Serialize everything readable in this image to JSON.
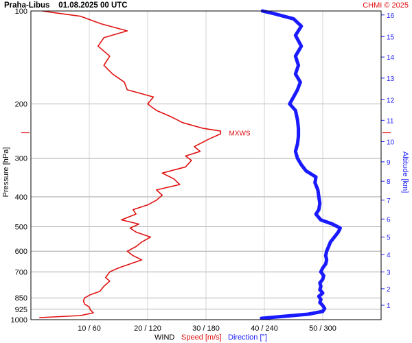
{
  "chart_data": {
    "type": "line",
    "title": "Praha-Libus    01.08.2025 00 UTC",
    "credit": "CHMI © 2025",
    "ylabel": "Pressure [hPa]",
    "y2label": "Altitude [km]",
    "xlabel_parts": {
      "wind": "WIND",
      "speed": "Speed [m/s]",
      "direction": "Direction [°]"
    },
    "y_scale": "log",
    "ylim": [
      1000,
      100
    ],
    "xlim_speed_ms": [
      0,
      60
    ],
    "xlim_direction_deg": [
      0,
      360
    ],
    "x_ticks": [
      {
        "speed": 10,
        "dir": 60,
        "label": "10 / 60"
      },
      {
        "speed": 20,
        "dir": 120,
        "label": "20 / 120"
      },
      {
        "speed": 30,
        "dir": 180,
        "label": "30 / 180"
      },
      {
        "speed": 40,
        "dir": 240,
        "label": "40 / 240"
      },
      {
        "speed": 50,
        "dir": 300,
        "label": "50 / 300"
      }
    ],
    "pressure_ticks": [
      {
        "p": 100,
        "label": "100"
      },
      {
        "p": 200,
        "label": "200"
      },
      {
        "p": 300,
        "label": "300"
      },
      {
        "p": 400,
        "label": "400"
      },
      {
        "p": 500,
        "label": "500"
      },
      {
        "p": 600,
        "label": "600"
      },
      {
        "p": 700,
        "label": "700"
      },
      {
        "p": 850,
        "label": "850"
      },
      {
        "p": 925,
        "label": "925"
      },
      {
        "p": 1000,
        "label": "1000"
      }
    ],
    "altitude_ticks": [
      {
        "km": 1,
        "p": 898,
        "label": "1"
      },
      {
        "km": 2,
        "p": 794,
        "label": "2"
      },
      {
        "km": 3,
        "p": 700,
        "label": "3"
      },
      {
        "km": 4,
        "p": 615,
        "label": "4"
      },
      {
        "km": 5,
        "p": 540,
        "label": "5"
      },
      {
        "km": 6,
        "p": 472,
        "label": "6"
      },
      {
        "km": 7,
        "p": 410,
        "label": "7"
      },
      {
        "km": 8,
        "p": 356,
        "label": "8"
      },
      {
        "km": 9,
        "p": 308,
        "label": "9"
      },
      {
        "km": 10,
        "p": 265,
        "label": "10"
      },
      {
        "km": 11,
        "p": 226,
        "label": "11"
      },
      {
        "km": 12,
        "p": 194,
        "label": "12"
      },
      {
        "km": 13,
        "p": 165,
        "label": "13"
      },
      {
        "km": 14,
        "p": 141,
        "label": "14"
      },
      {
        "km": 15,
        "p": 121,
        "label": "15"
      },
      {
        "km": 16,
        "p": 103,
        "label": "16"
      }
    ],
    "maxwind": {
      "label": "MXWS",
      "p": 248,
      "speed": 33
    },
    "series": [
      {
        "name": "Speed [m/s]",
        "color": "#e01010",
        "points": [
          [
            985,
            1.5
          ],
          [
            970,
            8.5
          ],
          [
            950,
            10.7
          ],
          [
            930,
            10.2
          ],
          [
            910,
            10.0
          ],
          [
            890,
            9.2
          ],
          [
            870,
            9.0
          ],
          [
            850,
            9.2
          ],
          [
            830,
            10.2
          ],
          [
            810,
            11.8
          ],
          [
            780,
            12.5
          ],
          [
            750,
            13.5
          ],
          [
            730,
            12.8
          ],
          [
            700,
            13.5
          ],
          [
            680,
            15.0
          ],
          [
            660,
            17.0
          ],
          [
            640,
            19.0
          ],
          [
            620,
            17.5
          ],
          [
            600,
            16.5
          ],
          [
            580,
            18.0
          ],
          [
            560,
            19.0
          ],
          [
            540,
            20.5
          ],
          [
            520,
            18.0
          ],
          [
            505,
            17.0
          ],
          [
            490,
            18.5
          ],
          [
            475,
            15.5
          ],
          [
            455,
            18.0
          ],
          [
            440,
            17.5
          ],
          [
            425,
            20.0
          ],
          [
            410,
            21.5
          ],
          [
            395,
            22.5
          ],
          [
            380,
            21.5
          ],
          [
            365,
            25.5
          ],
          [
            350,
            24.5
          ],
          [
            335,
            22.5
          ],
          [
            320,
            26.5
          ],
          [
            305,
            27.5
          ],
          [
            295,
            26.5
          ],
          [
            285,
            29.0
          ],
          [
            275,
            28.0
          ],
          [
            260,
            30.5
          ],
          [
            250,
            32.5
          ],
          [
            245,
            32.5
          ],
          [
            240,
            29.5
          ],
          [
            230,
            26.0
          ],
          [
            220,
            24.0
          ],
          [
            210,
            21.5
          ],
          [
            200,
            20.0
          ],
          [
            190,
            21.0
          ],
          [
            180,
            16.5
          ],
          [
            170,
            16.0
          ],
          [
            160,
            14.0
          ],
          [
            150,
            12.5
          ],
          [
            140,
            13.5
          ],
          [
            130,
            11.5
          ],
          [
            122,
            12.5
          ],
          [
            116,
            16.5
          ],
          [
            110,
            12.0
          ],
          [
            104,
            8.5
          ],
          [
            101,
            3.5
          ],
          [
            100,
            2.0
          ]
        ]
      },
      {
        "name": "Direction [°]",
        "color": "#1a1aff",
        "points": [
          [
            990,
            237
          ],
          [
            975,
            260
          ],
          [
            960,
            285
          ],
          [
            940,
            300
          ],
          [
            920,
            302
          ],
          [
            900,
            300
          ],
          [
            880,
            297
          ],
          [
            860,
            298
          ],
          [
            840,
            296
          ],
          [
            820,
            300
          ],
          [
            800,
            297
          ],
          [
            780,
            298
          ],
          [
            760,
            297
          ],
          [
            740,
            300
          ],
          [
            720,
            301
          ],
          [
            700,
            298
          ],
          [
            680,
            300
          ],
          [
            660,
            303
          ],
          [
            640,
            304
          ],
          [
            620,
            303
          ],
          [
            600,
            304
          ],
          [
            580,
            306
          ],
          [
            560,
            308
          ],
          [
            540,
            312
          ],
          [
            520,
            316
          ],
          [
            505,
            318
          ],
          [
            490,
            310
          ],
          [
            475,
            298
          ],
          [
            455,
            293
          ],
          [
            440,
            296
          ],
          [
            420,
            297
          ],
          [
            400,
            296
          ],
          [
            380,
            295
          ],
          [
            360,
            292
          ],
          [
            345,
            293
          ],
          [
            330,
            283
          ],
          [
            315,
            278
          ],
          [
            300,
            274
          ],
          [
            285,
            272
          ],
          [
            270,
            274
          ],
          [
            255,
            275
          ],
          [
            240,
            275
          ],
          [
            225,
            274
          ],
          [
            210,
            272
          ],
          [
            200,
            266
          ],
          [
            190,
            270
          ],
          [
            180,
            274
          ],
          [
            170,
            277
          ],
          [
            160,
            272
          ],
          [
            150,
            275
          ],
          [
            140,
            272
          ],
          [
            130,
            278
          ],
          [
            120,
            272
          ],
          [
            112,
            278
          ],
          [
            106,
            270
          ],
          [
            102,
            250
          ],
          [
            100,
            238
          ]
        ]
      }
    ]
  }
}
